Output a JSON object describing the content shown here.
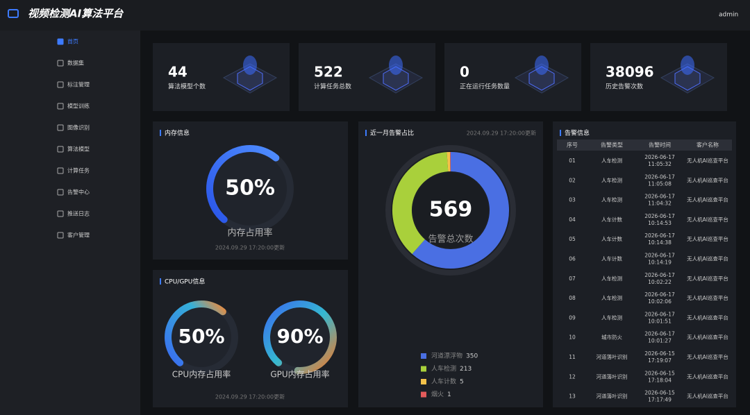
{
  "header": {
    "title": "视频检测AI算法平台",
    "user": "admin"
  },
  "sidebar": {
    "items": [
      "首页",
      "数据集",
      "标注管理",
      "模型训练",
      "图像识别",
      "算法模型",
      "计算任务",
      "告警中心",
      "推送日志",
      "客户管理"
    ]
  },
  "stats": [
    {
      "value": "44",
      "label": "算法模型个数"
    },
    {
      "value": "522",
      "label": "计算任务总数"
    },
    {
      "value": "0",
      "label": "正在运行任务数量"
    },
    {
      "value": "38096",
      "label": "历史告警次数"
    }
  ],
  "memory": {
    "title": "内存信息",
    "gauge": {
      "value": 50,
      "label": "50%"
    },
    "caption": "内存占用率",
    "updated": "2024.09.29 17:20:00更新"
  },
  "cpu_gpu": {
    "title": "CPU/GPU信息",
    "gauges": [
      {
        "value": 50,
        "label": "50%",
        "caption": "CPU内存占用率"
      },
      {
        "value": 90,
        "label": "90%",
        "caption": "GPU内存占用率"
      }
    ],
    "updated": "2024.09.29 17:20:00更新"
  },
  "alert_share": {
    "title": "近一月告警占比",
    "updated": "2024.09.29 17:20:00更新",
    "total": "569",
    "total_label": "告警总次数",
    "items": [
      {
        "name": "河道漂浮物",
        "value": 350,
        "color": "#4a6fe3"
      },
      {
        "name": "人车检测",
        "value": 213,
        "color": "#a9d03b"
      },
      {
        "name": "人车计数",
        "value": 5,
        "color": "#f3c24a"
      },
      {
        "name": "烟火",
        "value": 1,
        "color": "#e35b5b"
      }
    ]
  },
  "alert_table": {
    "title": "告警信息",
    "columns": [
      "序号",
      "告警类型",
      "告警时间",
      "客户名称"
    ],
    "rows": [
      [
        "01",
        "人车检测",
        "2026-06-17",
        "11:05:32",
        "无人机AI巡查平台"
      ],
      [
        "02",
        "人车检测",
        "2026-06-17",
        "11:05:08",
        "无人机AI巡查平台"
      ],
      [
        "03",
        "人车检测",
        "2026-06-17",
        "11:04:32",
        "无人机AI巡查平台"
      ],
      [
        "04",
        "人车计数",
        "2026-06-17",
        "10:14:53",
        "无人机AI巡查平台"
      ],
      [
        "05",
        "人车计数",
        "2026-06-17",
        "10:14:38",
        "无人机AI巡查平台"
      ],
      [
        "06",
        "人车计数",
        "2026-06-17",
        "10:14:19",
        "无人机AI巡查平台"
      ],
      [
        "07",
        "人车检测",
        "2026-06-17",
        "10:02:22",
        "无人机AI巡查平台"
      ],
      [
        "08",
        "人车检测",
        "2026-06-17",
        "10:02:06",
        "无人机AI巡查平台"
      ],
      [
        "09",
        "人车检测",
        "2026-06-17",
        "10:01:51",
        "无人机AI巡查平台"
      ],
      [
        "10",
        "城市防火",
        "2026-06-17",
        "10:01:27",
        "无人机AI巡查平台"
      ],
      [
        "11",
        "河道落叶识别",
        "2026-06-15",
        "17:19:07",
        "无人机AI巡查平台"
      ],
      [
        "12",
        "河道落叶识别",
        "2026-06-15",
        "17:18:04",
        "无人机AI巡查平台"
      ],
      [
        "13",
        "河道落叶识别",
        "2026-06-15",
        "17:17:49",
        "无人机AI巡查平台"
      ]
    ]
  }
}
